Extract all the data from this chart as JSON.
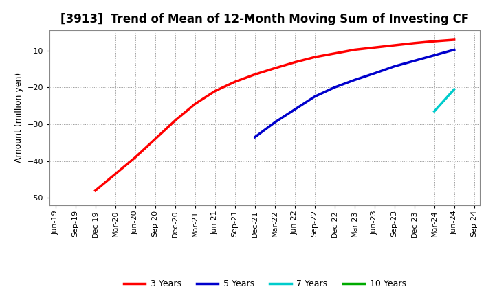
{
  "title": "[3913]  Trend of Mean of 12-Month Moving Sum of Investing CF",
  "ylabel": "Amount (million yen)",
  "background_color": "#ffffff",
  "plot_bg_color": "#ffffff",
  "grid_color": "#999999",
  "ylim": [
    -52,
    -4.5
  ],
  "yticks": [
    -50,
    -40,
    -30,
    -20,
    -10
  ],
  "series": {
    "3years": {
      "color": "#ff0000",
      "label": "3 Years",
      "points": [
        [
          "Dec-19",
          -48.0
        ],
        [
          "Mar-20",
          -43.5
        ],
        [
          "Jun-20",
          -39.0
        ],
        [
          "Sep-20",
          -34.0
        ],
        [
          "Dec-20",
          -29.0
        ],
        [
          "Mar-21",
          -24.5
        ],
        [
          "Jun-21",
          -21.0
        ],
        [
          "Sep-21",
          -18.5
        ],
        [
          "Dec-21",
          -16.5
        ],
        [
          "Mar-22",
          -14.8
        ],
        [
          "Jun-22",
          -13.2
        ],
        [
          "Sep-22",
          -11.8
        ],
        [
          "Dec-22",
          -10.8
        ],
        [
          "Mar-23",
          -9.8
        ],
        [
          "Jun-23",
          -9.2
        ],
        [
          "Sep-23",
          -8.6
        ],
        [
          "Dec-23",
          -8.0
        ],
        [
          "Mar-24",
          -7.5
        ],
        [
          "Jun-24",
          -7.1
        ]
      ]
    },
    "5years": {
      "color": "#0000cc",
      "label": "5 Years",
      "points": [
        [
          "Dec-21",
          -33.5
        ],
        [
          "Mar-22",
          -29.5
        ],
        [
          "Jun-22",
          -26.0
        ],
        [
          "Sep-22",
          -22.5
        ],
        [
          "Dec-22",
          -20.0
        ],
        [
          "Mar-23",
          -18.0
        ],
        [
          "Jun-23",
          -16.2
        ],
        [
          "Sep-23",
          -14.3
        ],
        [
          "Dec-23",
          -12.8
        ],
        [
          "Mar-24",
          -11.3
        ],
        [
          "Jun-24",
          -9.8
        ]
      ]
    },
    "7years": {
      "color": "#00cccc",
      "label": "7 Years",
      "points": [
        [
          "Mar-24",
          -26.5
        ],
        [
          "Jun-24",
          -20.5
        ]
      ]
    },
    "10years": {
      "color": "#00aa00",
      "label": "10 Years",
      "points": []
    }
  },
  "x_labels": [
    "Jun-19",
    "Sep-19",
    "Dec-19",
    "Mar-20",
    "Jun-20",
    "Sep-20",
    "Dec-20",
    "Mar-21",
    "Jun-21",
    "Sep-21",
    "Dec-21",
    "Mar-22",
    "Jun-22",
    "Sep-22",
    "Dec-22",
    "Mar-23",
    "Jun-23",
    "Sep-23",
    "Dec-23",
    "Mar-24",
    "Jun-24",
    "Sep-24"
  ],
  "title_fontsize": 12,
  "ylabel_fontsize": 9,
  "tick_fontsize": 8,
  "legend_fontsize": 9,
  "linewidth": 2.5
}
